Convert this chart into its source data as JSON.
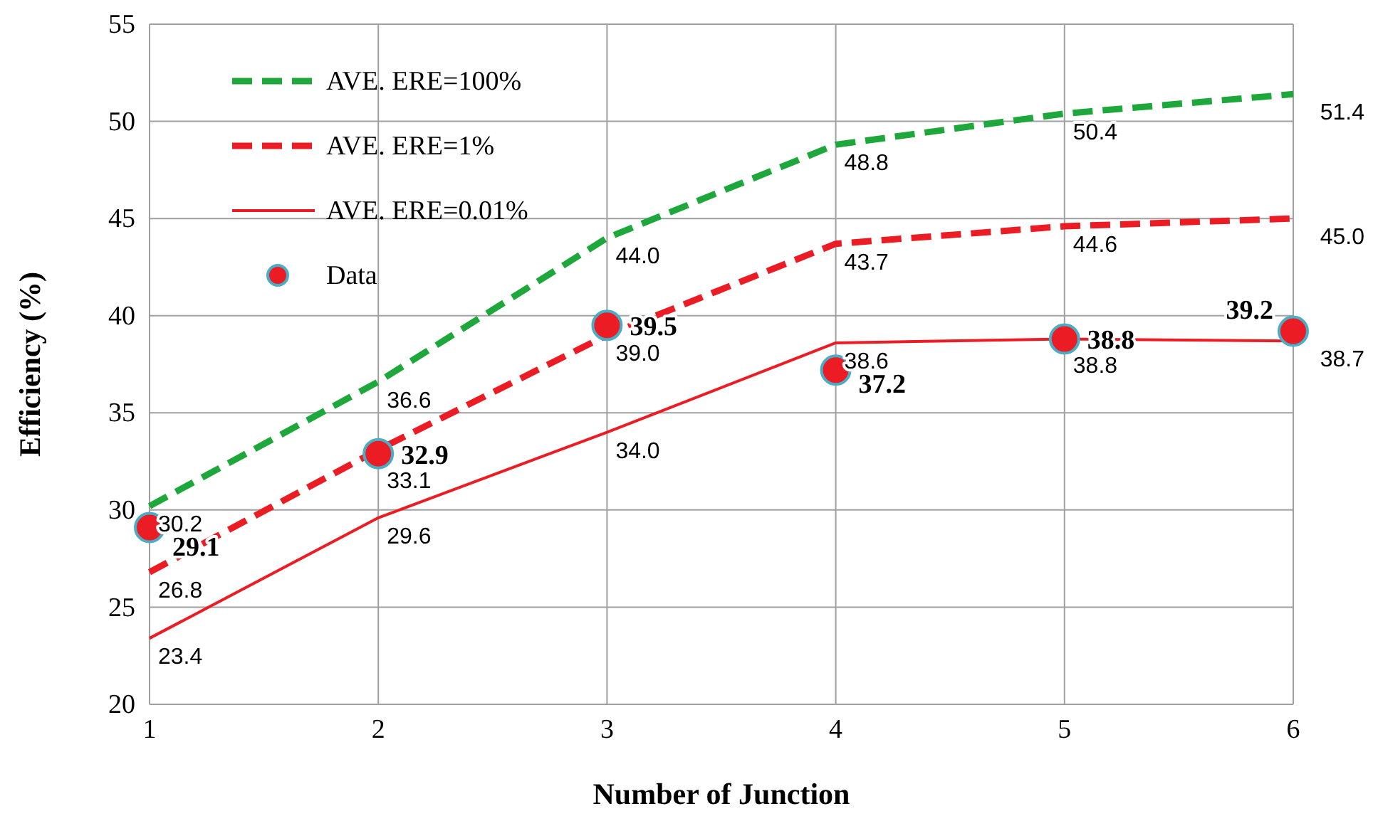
{
  "chart_data": {
    "type": "line",
    "xlabel": "Number of Junction",
    "ylabel": "Efficiency (%)",
    "x": [
      1,
      2,
      3,
      4,
      5,
      6
    ],
    "xlim": [
      1,
      6
    ],
    "xticks": [
      1,
      2,
      3,
      4,
      5,
      6
    ],
    "ylim": [
      20,
      55
    ],
    "yticks": [
      20,
      25,
      30,
      35,
      40,
      45,
      50,
      55
    ],
    "grid": true,
    "legend": "top left",
    "series": [
      {
        "name": "AVE. ERE=100%",
        "color": "#1ea83c",
        "line_style": "dashed",
        "marker": "none",
        "values": [
          30.2,
          36.6,
          44.0,
          48.8,
          50.4,
          51.4
        ],
        "value_labels": [
          "30.2",
          "36.6",
          "44.0",
          "48.8",
          "50.4",
          "51.4"
        ]
      },
      {
        "name": "AVE. ERE=1%",
        "color": "#ec1c24",
        "line_style": "dashed",
        "marker": "none",
        "values": [
          26.8,
          33.1,
          39.0,
          43.7,
          44.6,
          45.0
        ],
        "value_labels": [
          "26.8",
          "33.1",
          "39.0",
          "43.7",
          "44.6",
          "45.0"
        ]
      },
      {
        "name": "AVE. ERE=0.01%",
        "color": "#ec1c24",
        "line_style": "solid",
        "marker": "none",
        "values": [
          23.4,
          29.6,
          34.0,
          38.6,
          38.8,
          38.7
        ],
        "value_labels": [
          "23.4",
          "29.6",
          "34.0",
          "38.6",
          "38.8",
          "38.7"
        ]
      },
      {
        "name": "Data",
        "type": "scatter",
        "color": "#ec1c24",
        "marker": "circle",
        "values": [
          29.1,
          32.9,
          39.5,
          37.2,
          38.8,
          39.2
        ],
        "value_labels": [
          "29.1",
          "32.9",
          "39.5",
          "37.2",
          "38.8",
          "39.2"
        ]
      }
    ]
  }
}
